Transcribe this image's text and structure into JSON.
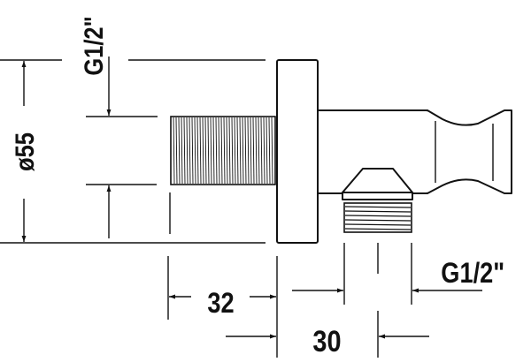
{
  "drawing": {
    "dimensions": {
      "diameter_label": "ø55",
      "inlet_thread_label": "G1/2\"",
      "outlet_thread_label": "G1/2\"",
      "inlet_length_label": "32",
      "outlet_offset_label": "30"
    },
    "colors": {
      "line": "#111111",
      "background": "#ffffff"
    }
  }
}
